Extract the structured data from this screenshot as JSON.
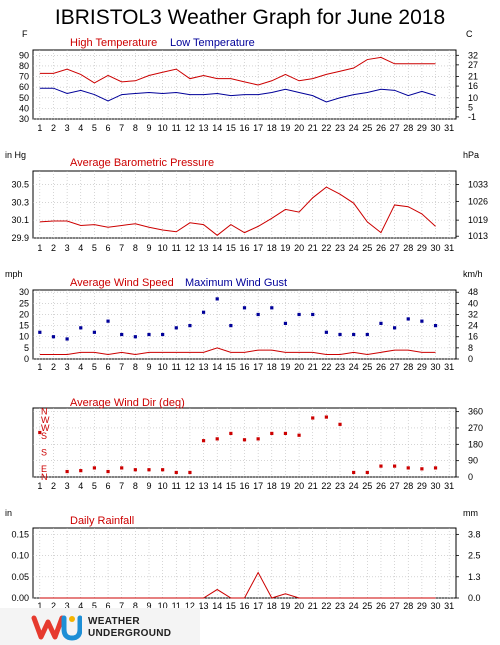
{
  "title": "IBRISTOL3 Weather Graph for June 2018",
  "logo": {
    "line1": "WEATHER",
    "line2": "UNDERGROUND"
  },
  "colors": {
    "red": "#cc0000",
    "blue": "#000099",
    "grid": "#bbbbbb"
  },
  "chart_data": [
    {
      "type": "line",
      "title_left": "High Temperature",
      "title_right": "Low Temperature",
      "unit_left": "F",
      "unit_right": "C",
      "x": [
        1,
        2,
        3,
        4,
        5,
        6,
        7,
        8,
        9,
        10,
        11,
        12,
        13,
        14,
        15,
        16,
        17,
        18,
        19,
        20,
        21,
        22,
        23,
        24,
        25,
        26,
        27,
        28,
        29,
        30
      ],
      "xticks": [
        1,
        2,
        3,
        4,
        5,
        6,
        7,
        8,
        9,
        10,
        11,
        12,
        13,
        14,
        15,
        16,
        17,
        18,
        19,
        20,
        21,
        22,
        23,
        24,
        25,
        26,
        27,
        28,
        29,
        30,
        31
      ],
      "ylim": [
        30,
        95
      ],
      "yticks": [
        30,
        40,
        50,
        60,
        70,
        80,
        90
      ],
      "right_ticks": [
        {
          "v": 32,
          "l": "-1"
        },
        {
          "v": 41,
          "l": "5"
        },
        {
          "v": 50,
          "l": "10"
        },
        {
          "v": 61,
          "l": "16"
        },
        {
          "v": 70,
          "l": "21"
        },
        {
          "v": 81,
          "l": "27"
        },
        {
          "v": 90,
          "l": "32"
        }
      ],
      "series": [
        {
          "name": "High Temperature",
          "color": "#cc0000",
          "values": [
            73,
            73,
            77,
            72,
            64,
            71,
            65,
            66,
            71,
            74,
            77,
            68,
            71,
            68,
            68,
            65,
            62,
            66,
            72,
            66,
            68,
            72,
            75,
            78,
            86,
            88,
            82,
            82,
            82,
            82
          ]
        },
        {
          "name": "Low Temperature",
          "color": "#000099",
          "values": [
            59,
            59,
            54,
            57,
            53,
            47,
            53,
            54,
            55,
            54,
            55,
            53,
            53,
            54,
            52,
            53,
            53,
            55,
            58,
            55,
            52,
            46,
            50,
            53,
            55,
            58,
            57,
            52,
            56,
            52
          ]
        }
      ]
    },
    {
      "type": "line",
      "title_left": "Average Barometric Pressure",
      "unit_left": "in Hg",
      "unit_right": "hPa",
      "x": [
        1,
        2,
        3,
        4,
        5,
        6,
        7,
        8,
        9,
        10,
        11,
        12,
        13,
        14,
        15,
        16,
        17,
        18,
        19,
        20,
        21,
        22,
        23,
        24,
        25,
        26,
        27,
        28,
        29,
        30
      ],
      "xticks": [
        1,
        2,
        3,
        4,
        5,
        6,
        7,
        8,
        9,
        10,
        11,
        12,
        13,
        14,
        15,
        16,
        17,
        18,
        19,
        20,
        21,
        22,
        23,
        24,
        25,
        26,
        27,
        28,
        29,
        30,
        31
      ],
      "ylim": [
        29.9,
        30.65
      ],
      "yticks": [
        29.9,
        30.1,
        30.3,
        30.5
      ],
      "ytick_labels": [
        "29.9",
        "30.1",
        "30.3",
        "30.5"
      ],
      "right_ticks": [
        {
          "v": 29.92,
          "l": "1013"
        },
        {
          "v": 30.1,
          "l": "1019"
        },
        {
          "v": 30.31,
          "l": "1026"
        },
        {
          "v": 30.5,
          "l": "1033"
        }
      ],
      "series": [
        {
          "name": "Average Barometric Pressure",
          "color": "#cc0000",
          "values": [
            30.08,
            30.09,
            30.09,
            30.04,
            30.05,
            30.02,
            30.04,
            30.06,
            30.02,
            29.99,
            29.97,
            30.07,
            30.05,
            29.93,
            30.05,
            29.96,
            30.03,
            30.12,
            30.22,
            30.19,
            30.35,
            30.47,
            30.39,
            30.29,
            30.08,
            29.96,
            30.27,
            30.25,
            30.17,
            30.03
          ]
        }
      ]
    },
    {
      "type": "line",
      "title_left": "Average Wind Speed",
      "title_right": "Maximum Wind Gust",
      "unit_left": "mph",
      "unit_right": "km/h",
      "x": [
        1,
        2,
        3,
        4,
        5,
        6,
        7,
        8,
        9,
        10,
        11,
        12,
        13,
        14,
        15,
        16,
        17,
        18,
        19,
        20,
        21,
        22,
        23,
        24,
        25,
        26,
        27,
        28,
        29,
        30
      ],
      "xticks": [
        1,
        2,
        3,
        4,
        5,
        6,
        7,
        8,
        9,
        10,
        11,
        12,
        13,
        14,
        15,
        16,
        17,
        18,
        19,
        20,
        21,
        22,
        23,
        24,
        25,
        26,
        27,
        28,
        29,
        30,
        31
      ],
      "ylim": [
        0,
        31
      ],
      "yticks": [
        0,
        5,
        10,
        15,
        20,
        25,
        30
      ],
      "right_ticks": [
        {
          "v": 0,
          "l": "0"
        },
        {
          "v": 5,
          "l": "8"
        },
        {
          "v": 10,
          "l": "16"
        },
        {
          "v": 15,
          "l": "24"
        },
        {
          "v": 20,
          "l": "32"
        },
        {
          "v": 25,
          "l": "40"
        },
        {
          "v": 30,
          "l": "48"
        }
      ],
      "series": [
        {
          "name": "Average Wind Speed",
          "color": "#cc0000",
          "style": "line",
          "values": [
            2,
            2,
            2,
            3,
            3,
            2,
            3,
            2,
            3,
            3,
            3,
            3,
            3,
            5,
            3,
            3,
            4,
            4,
            3,
            3,
            3,
            2,
            2,
            3,
            2,
            3,
            4,
            4,
            3,
            3
          ]
        },
        {
          "name": "Maximum Wind Gust",
          "color": "#000099",
          "style": "dots",
          "values": [
            12,
            10,
            9,
            14,
            12,
            17,
            11,
            10,
            11,
            11,
            14,
            15,
            21,
            27,
            15,
            23,
            20,
            23,
            16,
            20,
            20,
            12,
            11,
            11,
            11,
            16,
            14,
            18,
            17,
            15
          ]
        }
      ]
    },
    {
      "type": "scatter",
      "title_left": "Average Wind Dir (deg)",
      "left_labels": [
        {
          "v": 360,
          "l": "N"
        },
        {
          "v": 315,
          "l": "W"
        },
        {
          "v": 270,
          "l": "W"
        },
        {
          "v": 225,
          "l": "S"
        },
        {
          "v": 135,
          "l": "S"
        },
        {
          "v": 45,
          "l": "E"
        },
        {
          "v": 0,
          "l": "N"
        }
      ],
      "x": [
        1,
        2,
        3,
        4,
        5,
        6,
        7,
        8,
        9,
        10,
        11,
        12,
        13,
        14,
        15,
        16,
        17,
        18,
        19,
        20,
        21,
        22,
        23,
        24,
        25,
        26,
        27,
        28,
        29,
        30
      ],
      "xticks": [
        1,
        2,
        3,
        4,
        5,
        6,
        7,
        8,
        9,
        10,
        11,
        12,
        13,
        14,
        15,
        16,
        17,
        18,
        19,
        20,
        21,
        22,
        23,
        24,
        25,
        26,
        27,
        28,
        29,
        30,
        31
      ],
      "ylim": [
        0,
        380
      ],
      "yticks": [
        0,
        90,
        180,
        270,
        360
      ],
      "right_ticks": [
        {
          "v": 0,
          "l": "0"
        },
        {
          "v": 90,
          "l": "90"
        },
        {
          "v": 180,
          "l": "180"
        },
        {
          "v": 270,
          "l": "270"
        },
        {
          "v": 360,
          "l": "360"
        }
      ],
      "series": [
        {
          "name": "Average Wind Dir",
          "color": "#cc0000",
          "style": "dots",
          "values": [
            245,
            null,
            30,
            35,
            50,
            30,
            50,
            40,
            40,
            40,
            25,
            25,
            200,
            210,
            240,
            205,
            210,
            240,
            240,
            230,
            325,
            330,
            290,
            25,
            25,
            60,
            60,
            50,
            45,
            50
          ]
        }
      ]
    },
    {
      "type": "line",
      "title_left": "Daily Rainfall",
      "unit_left": "in",
      "unit_right": "mm",
      "x": [
        1,
        2,
        3,
        4,
        5,
        6,
        7,
        8,
        9,
        10,
        11,
        12,
        13,
        14,
        15,
        16,
        17,
        18,
        19,
        20,
        21,
        22,
        23,
        24,
        25,
        26,
        27,
        28,
        29,
        30
      ],
      "xticks": [
        1,
        2,
        3,
        4,
        5,
        6,
        7,
        8,
        9,
        10,
        11,
        12,
        13,
        14,
        15,
        16,
        17,
        18,
        19,
        20,
        21,
        22,
        23,
        24,
        25,
        26,
        27,
        28,
        29,
        30,
        31
      ],
      "ylim": [
        0,
        0.165
      ],
      "yticks": [
        0,
        0.05,
        0.1,
        0.15
      ],
      "ytick_labels": [
        "0.00",
        "0.05",
        "0.10",
        "0.15"
      ],
      "right_ticks": [
        {
          "v": 0,
          "l": "0.0"
        },
        {
          "v": 0.05,
          "l": "1.3"
        },
        {
          "v": 0.1,
          "l": "2.5"
        },
        {
          "v": 0.15,
          "l": "3.8"
        }
      ],
      "series": [
        {
          "name": "Daily Rainfall",
          "color": "#cc0000",
          "values": [
            0,
            0,
            0,
            0,
            0,
            0,
            0,
            0,
            0,
            0,
            0,
            0,
            0,
            0.02,
            0,
            0,
            0.06,
            0,
            0.01,
            0,
            0,
            0,
            0,
            0,
            0,
            0,
            0,
            0,
            0,
            0
          ]
        }
      ]
    }
  ]
}
